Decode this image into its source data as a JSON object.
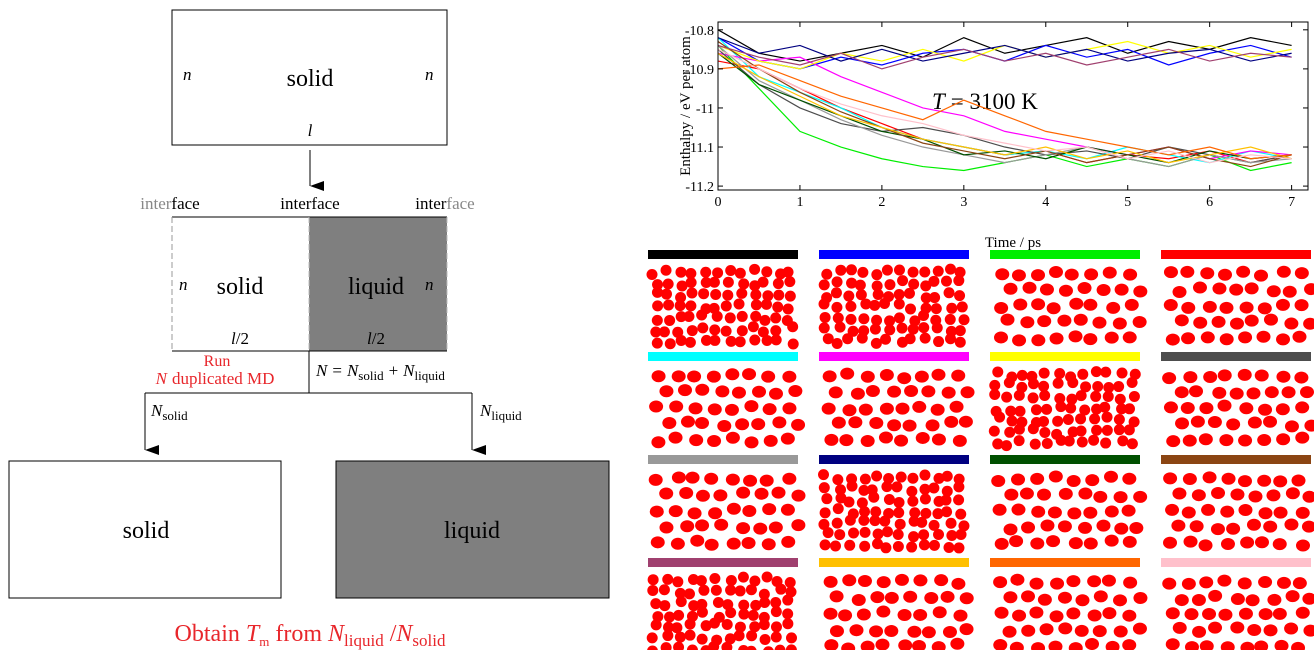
{
  "diagram": {
    "top_box": {
      "left": "n",
      "label": "solid",
      "right": "n",
      "length": "l"
    },
    "interfaces": [
      [
        "inter",
        "face"
      ],
      [
        "interface"
      ],
      [
        "inter",
        "face"
      ]
    ],
    "middle_box": {
      "left": "n",
      "solid": "solid",
      "liquid": "liquid",
      "right": "n",
      "half_length": [
        "l",
        "/2",
        "l",
        "/2"
      ]
    },
    "run": [
      "Run",
      "N",
      "duplicated MD"
    ],
    "sum": [
      "N",
      "=",
      "N",
      "solid",
      "+",
      "N",
      "liquid"
    ],
    "branch_left": [
      "N",
      "solid"
    ],
    "branch_right": [
      "N",
      "liquid"
    ],
    "bottom_boxes": [
      "solid",
      "liquid"
    ],
    "result": [
      "Obtain",
      "T",
      "m",
      "from",
      "N",
      "liquid",
      "/",
      "N",
      "solid"
    ]
  },
  "chart_data": {
    "type": "line",
    "x_label": "Time / ps",
    "y_label": "Enthalpy / eV per atom",
    "annotation": [
      "T",
      "= 3100 K"
    ],
    "x": [
      0,
      0.5,
      1,
      1.5,
      2,
      2.5,
      3,
      3.5,
      4,
      4.5,
      5,
      5.5,
      6,
      6.5,
      7
    ],
    "xlim": [
      0,
      7.2
    ],
    "ylim": [
      -11.21,
      -10.78
    ],
    "xticks": [
      0,
      1,
      2,
      3,
      4,
      5,
      6,
      7
    ],
    "yticks": [
      -10.8,
      -10.9,
      -11,
      -11.1,
      -11.2
    ],
    "series": [
      {
        "color": "#000000",
        "values": [
          -10.8,
          -10.86,
          -10.88,
          -10.86,
          -10.84,
          -10.87,
          -10.82,
          -10.86,
          -10.84,
          -10.82,
          -10.86,
          -10.83,
          -10.85,
          -10.82,
          -10.84
        ]
      },
      {
        "color": "#0000ff",
        "values": [
          -10.82,
          -10.88,
          -10.9,
          -10.87,
          -10.89,
          -10.86,
          -10.85,
          -10.88,
          -10.84,
          -10.87,
          -10.85,
          -10.89,
          -10.86,
          -10.84,
          -10.87
        ]
      },
      {
        "color": "#00ee00",
        "values": [
          -10.84,
          -10.95,
          -11.06,
          -11.1,
          -11.13,
          -11.15,
          -11.16,
          -11.14,
          -11.12,
          -11.15,
          -11.13,
          -11.15,
          -11.12,
          -11.16,
          -11.14
        ]
      },
      {
        "color": "#ff0000",
        "values": [
          -10.88,
          -10.9,
          -10.95,
          -11.0,
          -11.04,
          -11.08,
          -11.1,
          -11.12,
          -11.11,
          -11.14,
          -11.12,
          -11.13,
          -11.11,
          -11.14,
          -11.12
        ]
      },
      {
        "color": "#00ffff",
        "values": [
          -10.82,
          -10.92,
          -10.96,
          -11.0,
          -11.05,
          -11.08,
          -11.1,
          -11.12,
          -11.11,
          -11.13,
          -11.1,
          -11.12,
          -11.14,
          -11.11,
          -11.13
        ]
      },
      {
        "color": "#ff00ff",
        "values": [
          -10.86,
          -10.88,
          -10.87,
          -10.92,
          -10.96,
          -11.0,
          -11.02,
          -11.06,
          -11.08,
          -11.1,
          -11.12,
          -11.1,
          -11.13,
          -11.11,
          -11.12
        ]
      },
      {
        "color": "#ffff00",
        "values": [
          -10.84,
          -10.88,
          -10.9,
          -10.86,
          -10.88,
          -10.85,
          -10.88,
          -10.84,
          -10.87,
          -10.85,
          -10.83,
          -10.86,
          -10.84,
          -10.87,
          -10.85
        ]
      },
      {
        "color": "#4d4d4d",
        "values": [
          -10.85,
          -10.94,
          -11.0,
          -11.04,
          -11.06,
          -11.05,
          -11.07,
          -11.1,
          -11.12,
          -11.11,
          -11.13,
          -11.1,
          -11.12,
          -11.14,
          -11.12
        ]
      },
      {
        "color": "#999999",
        "values": [
          -10.84,
          -10.93,
          -10.98,
          -11.03,
          -11.07,
          -11.1,
          -11.12,
          -11.14,
          -11.12,
          -11.1,
          -11.13,
          -11.15,
          -11.12,
          -11.14,
          -11.13
        ]
      },
      {
        "color": "#000080",
        "values": [
          -10.82,
          -10.86,
          -10.84,
          -10.88,
          -10.85,
          -10.88,
          -10.86,
          -10.84,
          -10.87,
          -10.85,
          -10.88,
          -10.86,
          -10.85,
          -10.88,
          -10.86
        ]
      },
      {
        "color": "#005000",
        "values": [
          -10.86,
          -10.94,
          -10.98,
          -11.02,
          -11.06,
          -11.08,
          -11.12,
          -11.11,
          -11.13,
          -11.1,
          -11.12,
          -11.14,
          -11.11,
          -11.13,
          -11.12
        ]
      },
      {
        "color": "#8b4513",
        "values": [
          -10.83,
          -10.9,
          -10.96,
          -11.01,
          -11.05,
          -11.09,
          -11.11,
          -11.13,
          -11.11,
          -11.14,
          -11.12,
          -11.1,
          -11.13,
          -11.15,
          -11.12
        ]
      },
      {
        "color": "#a0406f",
        "values": [
          -10.84,
          -10.87,
          -10.89,
          -10.86,
          -10.9,
          -10.87,
          -10.85,
          -10.88,
          -10.86,
          -10.89,
          -10.87,
          -10.85,
          -10.88,
          -10.86,
          -10.87
        ]
      },
      {
        "color": "#ffc000",
        "values": [
          -10.86,
          -10.92,
          -10.97,
          -11.02,
          -11.05,
          -11.08,
          -11.1,
          -11.12,
          -11.1,
          -11.13,
          -11.11,
          -11.14,
          -11.12,
          -11.1,
          -11.13
        ]
      },
      {
        "color": "#ff6600",
        "values": [
          -10.9,
          -10.89,
          -10.93,
          -10.97,
          -11.0,
          -11.03,
          -10.98,
          -11.02,
          -11.06,
          -11.08,
          -11.1,
          -11.12,
          -11.1,
          -11.13,
          -11.12
        ]
      },
      {
        "color": "#ffc0cb",
        "values": [
          -10.85,
          -10.9,
          -10.95,
          -10.99,
          -11.02,
          -11.04,
          -11.07,
          -11.09,
          -11.11,
          -11.1,
          -11.13,
          -11.11,
          -11.14,
          -11.12,
          -11.13
        ]
      }
    ]
  }
}
